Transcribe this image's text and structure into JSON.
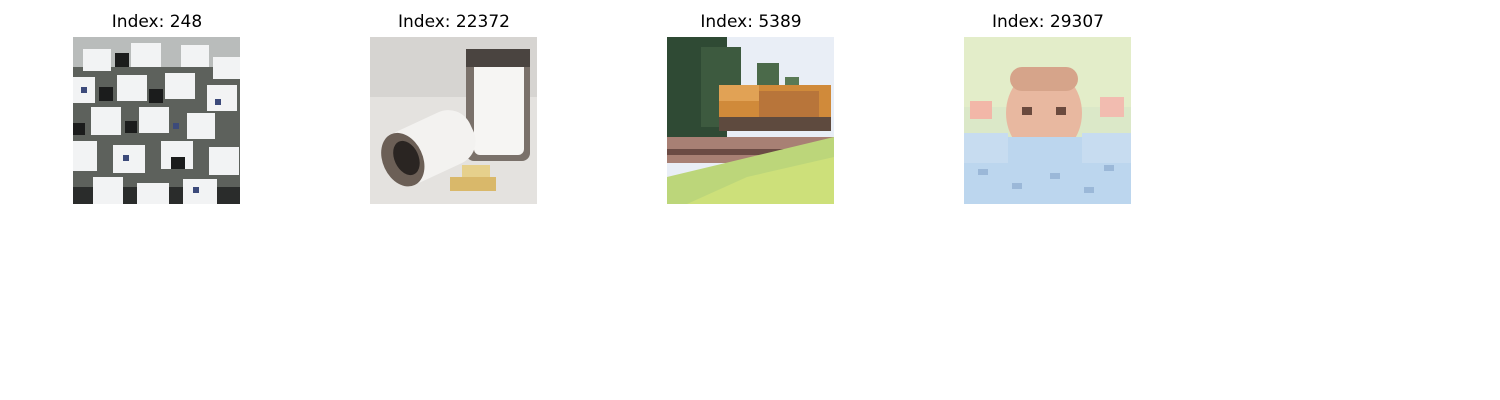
{
  "panels": [
    {
      "title": "Index: 248"
    },
    {
      "title": "Index: 22372"
    },
    {
      "title": "Index: 5389"
    },
    {
      "title": "Index: 29307"
    }
  ]
}
